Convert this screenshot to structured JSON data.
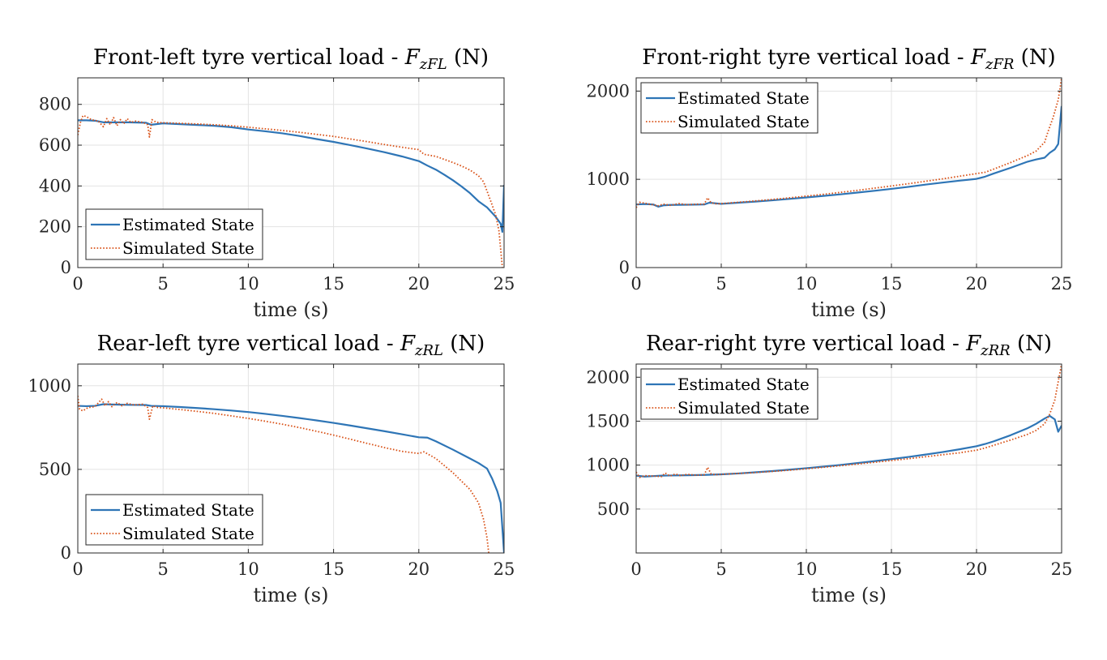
{
  "chart_data": [
    {
      "type": "line",
      "title": "Front-left tyre vertical load - ",
      "title_symbol": "F",
      "title_subscript": "zFL",
      "title_unit": " (N)",
      "xlabel": "time (s)",
      "ylabel": "",
      "xlim": [
        0,
        25
      ],
      "ylim": [
        0,
        930
      ],
      "xticks": [
        0,
        5,
        10,
        15,
        20,
        25
      ],
      "yticks": [
        0,
        200,
        400,
        600,
        800
      ],
      "grid": true,
      "legend_position": "bottom-left",
      "series": [
        {
          "name": "Estimated State",
          "color": "#2e75b6",
          "style": "solid",
          "x": [
            0,
            0.5,
            1.0,
            1.5,
            2.0,
            3.0,
            4.0,
            4.3,
            5,
            6,
            7,
            8,
            9,
            10,
            11,
            12,
            13,
            14,
            15,
            16,
            17,
            18,
            19,
            20,
            20.5,
            21,
            21.5,
            22,
            22.5,
            23,
            23.5,
            24,
            24.5,
            24.8,
            24.9,
            25.0
          ],
          "y": [
            722,
            722,
            720,
            712,
            712,
            712,
            710,
            700,
            707,
            703,
            699,
            695,
            688,
            677,
            668,
            658,
            645,
            630,
            616,
            600,
            583,
            565,
            545,
            522,
            500,
            480,
            455,
            428,
            398,
            365,
            325,
            295,
            250,
            215,
            175,
            405
          ]
        },
        {
          "name": "Simulated State",
          "color": "#d95319",
          "style": "dotted",
          "x": [
            0,
            0.15,
            0.3,
            0.5,
            0.8,
            1.2,
            1.5,
            1.7,
            1.9,
            2.1,
            2.3,
            2.5,
            2.7,
            2.9,
            3.1,
            3.4,
            3.8,
            4.1,
            4.2,
            4.35,
            4.6,
            5,
            6,
            7,
            8,
            9,
            10,
            11,
            12,
            13,
            14,
            15,
            16,
            17,
            18,
            19,
            20,
            20.3,
            21,
            21.5,
            22,
            22.5,
            23,
            23.5,
            23.8,
            24.2,
            24.5,
            24.7,
            24.8,
            24.9
          ],
          "y": [
            650,
            710,
            745,
            740,
            725,
            718,
            690,
            730,
            700,
            735,
            695,
            725,
            705,
            730,
            712,
            718,
            712,
            700,
            640,
            725,
            712,
            710,
            707,
            704,
            700,
            695,
            688,
            680,
            672,
            663,
            653,
            643,
            630,
            617,
            603,
            590,
            578,
            555,
            545,
            530,
            515,
            498,
            478,
            450,
            420,
            330,
            260,
            180,
            90,
            0
          ]
        }
      ]
    },
    {
      "type": "line",
      "title": "Front-right tyre vertical load - ",
      "title_symbol": "F",
      "title_subscript": "zFR",
      "title_unit": " (N)",
      "xlabel": "time (s)",
      "ylabel": "",
      "xlim": [
        0,
        25
      ],
      "ylim": [
        0,
        2150
      ],
      "xticks": [
        0,
        5,
        10,
        15,
        20,
        25
      ],
      "yticks": [
        0,
        1000,
        2000
      ],
      "grid": true,
      "legend_position": "top-left",
      "series": [
        {
          "name": "Estimated State",
          "color": "#2e75b6",
          "style": "solid",
          "x": [
            0,
            0.5,
            1.0,
            1.3,
            1.6,
            2.0,
            3.0,
            4.0,
            4.3,
            5,
            6,
            7,
            8,
            9,
            10,
            11,
            12,
            13,
            14,
            15,
            16,
            17,
            18,
            19,
            20,
            20.5,
            21,
            22,
            23,
            23.5,
            24,
            24.3,
            24.6,
            24.8,
            25.0
          ],
          "y": [
            715,
            720,
            715,
            690,
            705,
            710,
            712,
            715,
            735,
            722,
            735,
            748,
            762,
            778,
            795,
            812,
            830,
            850,
            870,
            892,
            915,
            940,
            963,
            985,
            1005,
            1030,
            1065,
            1130,
            1200,
            1225,
            1245,
            1300,
            1340,
            1400,
            1830
          ]
        },
        {
          "name": "Simulated State",
          "color": "#d95319",
          "style": "dotted",
          "x": [
            0,
            0.2,
            0.5,
            0.9,
            1.3,
            1.6,
            2.0,
            2.5,
            3.0,
            3.5,
            4.0,
            4.2,
            4.4,
            4.7,
            5,
            6,
            7,
            8,
            9,
            10,
            11,
            12,
            13,
            14,
            15,
            16,
            17,
            18,
            19,
            20,
            20.5,
            21,
            22,
            23,
            23.5,
            24,
            24.2,
            24.5,
            24.8,
            25.0
          ],
          "y": [
            680,
            740,
            730,
            715,
            700,
            720,
            705,
            725,
            712,
            718,
            720,
            790,
            735,
            722,
            725,
            740,
            755,
            772,
            790,
            810,
            830,
            852,
            875,
            900,
            925,
            950,
            978,
            1005,
            1035,
            1065,
            1080,
            1115,
            1190,
            1270,
            1320,
            1420,
            1540,
            1700,
            1900,
            2150
          ]
        }
      ]
    },
    {
      "type": "line",
      "title": "Rear-left tyre vertical load - ",
      "title_symbol": "F",
      "title_subscript": "zRL",
      "title_unit": " (N)",
      "xlabel": "time (s)",
      "ylabel": "",
      "xlim": [
        0,
        25
      ],
      "ylim": [
        0,
        1130
      ],
      "xticks": [
        0,
        5,
        10,
        15,
        20,
        25
      ],
      "yticks": [
        0,
        500,
        1000
      ],
      "grid": true,
      "legend_position": "bottom-left",
      "series": [
        {
          "name": "Estimated State",
          "color": "#2e75b6",
          "style": "solid",
          "x": [
            0,
            0.5,
            1.0,
            1.5,
            2.0,
            3.0,
            4.0,
            4.3,
            5,
            6,
            7,
            8,
            9,
            10,
            11,
            12,
            13,
            14,
            15,
            16,
            17,
            18,
            19,
            20,
            20.5,
            21,
            22,
            23,
            23.5,
            24,
            24.3,
            24.6,
            24.8,
            25.0
          ],
          "y": [
            880,
            878,
            880,
            890,
            888,
            886,
            885,
            880,
            878,
            873,
            867,
            860,
            852,
            843,
            832,
            820,
            807,
            793,
            778,
            762,
            745,
            728,
            710,
            692,
            690,
            668,
            618,
            565,
            538,
            505,
            445,
            370,
            300,
            0
          ]
        },
        {
          "name": "Simulated State",
          "color": "#d95319",
          "style": "dotted",
          "x": [
            0,
            0.1,
            0.3,
            0.6,
            1.0,
            1.4,
            1.6,
            1.8,
            2.0,
            2.3,
            2.6,
            2.9,
            3.3,
            3.8,
            4.1,
            4.2,
            4.4,
            4.7,
            5,
            6,
            7,
            8,
            9,
            10,
            11,
            12,
            13,
            14,
            15,
            16,
            17,
            18,
            19,
            20,
            20.3,
            21,
            22,
            23,
            23.5,
            23.8,
            24.0,
            24.1
          ],
          "y": [
            940,
            860,
            850,
            870,
            875,
            920,
            880,
            905,
            875,
            900,
            880,
            895,
            885,
            890,
            870,
            800,
            880,
            870,
            868,
            858,
            847,
            835,
            820,
            805,
            788,
            770,
            750,
            728,
            705,
            680,
            655,
            630,
            608,
            595,
            605,
            565,
            480,
            380,
            300,
            200,
            90,
            0
          ]
        }
      ]
    },
    {
      "type": "line",
      "title": "Rear-right tyre vertical load - ",
      "title_symbol": "F",
      "title_subscript": "zRR",
      "title_unit": " (N)",
      "xlabel": "time (s)",
      "ylabel": "",
      "xlim": [
        0,
        25
      ],
      "ylim": [
        0,
        2150
      ],
      "xticks": [
        0,
        5,
        10,
        15,
        20,
        25
      ],
      "yticks": [
        500,
        1000,
        1500,
        2000
      ],
      "grid": true,
      "legend_position": "top-left",
      "series": [
        {
          "name": "Estimated State",
          "color": "#2e75b6",
          "style": "solid",
          "x": [
            0,
            0.5,
            1.0,
            1.5,
            2.0,
            3.0,
            4.0,
            5,
            6,
            7,
            8,
            9,
            10,
            11,
            12,
            13,
            14,
            15,
            16,
            17,
            18,
            19,
            20,
            20.5,
            21,
            22,
            23,
            23.5,
            24,
            24.3,
            24.6,
            24.8,
            25.0
          ],
          "y": [
            880,
            870,
            875,
            880,
            882,
            885,
            888,
            895,
            905,
            918,
            932,
            948,
            965,
            983,
            1002,
            1023,
            1045,
            1068,
            1093,
            1120,
            1148,
            1180,
            1215,
            1240,
            1270,
            1340,
            1420,
            1470,
            1530,
            1560,
            1520,
            1380,
            1450
          ]
        },
        {
          "name": "Simulated State",
          "color": "#d95319",
          "style": "dotted",
          "x": [
            0,
            0.2,
            0.5,
            1.0,
            1.5,
            1.7,
            2.0,
            2.3,
            2.6,
            3.0,
            3.5,
            4.0,
            4.2,
            4.4,
            4.7,
            5,
            6,
            7,
            8,
            9,
            10,
            11,
            12,
            13,
            14,
            15,
            16,
            17,
            18,
            19,
            20,
            20.5,
            21,
            22,
            23,
            23.5,
            24,
            24.3,
            24.6,
            24.8,
            25.0
          ],
          "y": [
            920,
            860,
            880,
            875,
            870,
            910,
            875,
            900,
            880,
            895,
            885,
            890,
            975,
            900,
            890,
            895,
            905,
            915,
            928,
            942,
            958,
            975,
            993,
            1012,
            1032,
            1052,
            1073,
            1095,
            1118,
            1140,
            1170,
            1195,
            1225,
            1285,
            1350,
            1395,
            1470,
            1580,
            1740,
            1950,
            2150
          ]
        }
      ]
    }
  ]
}
